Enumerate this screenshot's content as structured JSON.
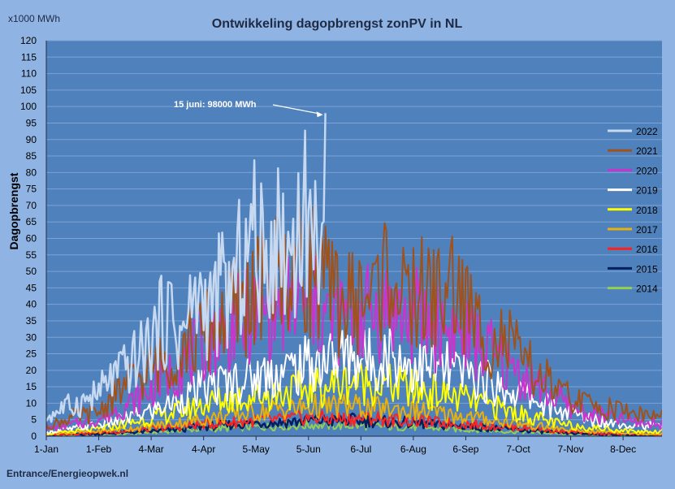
{
  "chart_data": {
    "type": "line",
    "title": "Ontwikkeling dagopbrengst zonPV in NL",
    "unit_label": "x1000 MWh",
    "ylabel": "Dagopbrengst",
    "source": "Entrance/Energieopwek.nl",
    "annotation": "15 juni: 98000 MWh",
    "annotation_point": {
      "day": 166,
      "value": 98
    },
    "ylim": [
      0,
      120
    ],
    "yticks": [
      0,
      5,
      10,
      15,
      20,
      25,
      30,
      35,
      40,
      45,
      50,
      55,
      60,
      65,
      70,
      75,
      80,
      85,
      90,
      95,
      100,
      105,
      110,
      115,
      120
    ],
    "xlim": [
      1,
      365
    ],
    "xticks": [
      {
        "label": "1-Jan",
        "day": 1
      },
      {
        "label": "1-Feb",
        "day": 32
      },
      {
        "label": "4-Mar",
        "day": 63
      },
      {
        "label": "4-Apr",
        "day": 94
      },
      {
        "label": "5-May",
        "day": 125
      },
      {
        "label": "5-Jun",
        "day": 156
      },
      {
        "label": "6-Jul",
        "day": 187
      },
      {
        "label": "6-Aug",
        "day": 218
      },
      {
        "label": "6-Sep",
        "day": 249
      },
      {
        "label": "7-Oct",
        "day": 280
      },
      {
        "label": "7-Nov",
        "day": 311
      },
      {
        "label": "8-Dec",
        "day": 342
      }
    ],
    "grid": true,
    "legend_position": "right",
    "colors": {
      "plot_bg": "#4f81bd",
      "page_bg": "#8fb4e3",
      "grid": "#7ea3d4"
    },
    "series": [
      {
        "name": "2022",
        "color": "#c6d9f0",
        "width": 2.5,
        "x": [
          1,
          10,
          20,
          31,
          40,
          50,
          60,
          70,
          75,
          80,
          90,
          100,
          105,
          110,
          115,
          120,
          125,
          130,
          135,
          140,
          145,
          150,
          155,
          160,
          163,
          166
        ],
        "y": [
          8,
          12,
          14,
          18,
          25,
          30,
          38,
          50,
          53,
          42,
          60,
          55,
          66,
          60,
          72,
          82,
          88,
          70,
          90,
          85,
          78,
          93,
          96,
          85,
          95,
          98
        ]
      },
      {
        "name": "2021",
        "color": "#a0521d",
        "width": 2,
        "x": [
          1,
          15,
          31,
          45,
          59,
          70,
          80,
          91,
          100,
          110,
          121,
          130,
          140,
          152,
          160,
          170,
          182,
          195,
          205,
          213,
          220,
          230,
          243,
          255,
          265,
          274,
          285,
          295,
          305,
          320,
          335,
          350,
          365
        ],
        "y": [
          4,
          8,
          10,
          20,
          28,
          32,
          38,
          42,
          48,
          55,
          60,
          65,
          70,
          78,
          72,
          60,
          58,
          62,
          75,
          55,
          62,
          60,
          65,
          48,
          42,
          40,
          30,
          25,
          18,
          14,
          12,
          10,
          8
        ]
      },
      {
        "name": "2020",
        "color": "#cc33cc",
        "width": 2,
        "x": [
          1,
          15,
          31,
          45,
          59,
          70,
          80,
          91,
          100,
          110,
          121,
          130,
          140,
          152,
          160,
          170,
          182,
          195,
          205,
          213,
          220,
          230,
          243,
          255,
          265,
          274,
          285,
          295,
          305,
          320,
          335,
          350,
          365
        ],
        "y": [
          3,
          5,
          7,
          12,
          18,
          25,
          30,
          38,
          44,
          48,
          52,
          55,
          57,
          58,
          55,
          50,
          52,
          54,
          56,
          50,
          52,
          48,
          45,
          40,
          35,
          30,
          25,
          20,
          15,
          10,
          8,
          6,
          5
        ]
      },
      {
        "name": "2019",
        "color": "#ffffff",
        "width": 2,
        "x": [
          1,
          15,
          31,
          45,
          59,
          70,
          80,
          91,
          100,
          110,
          121,
          130,
          140,
          152,
          160,
          170,
          182,
          195,
          205,
          213,
          220,
          230,
          243,
          255,
          265,
          274,
          285,
          295,
          305,
          320,
          335,
          350,
          365
        ],
        "y": [
          2,
          3,
          5,
          7,
          10,
          13,
          16,
          20,
          22,
          24,
          25,
          27,
          28,
          30,
          32,
          34,
          35,
          33,
          36,
          32,
          30,
          30,
          28,
          26,
          22,
          20,
          18,
          14,
          11,
          8,
          6,
          5,
          4
        ]
      },
      {
        "name": "2018",
        "color": "#ffff00",
        "width": 2,
        "x": [
          1,
          15,
          31,
          45,
          59,
          70,
          80,
          91,
          100,
          110,
          121,
          130,
          140,
          152,
          160,
          170,
          182,
          195,
          205,
          213,
          220,
          230,
          243,
          255,
          265,
          274,
          285,
          295,
          305,
          320,
          335,
          350,
          365
        ],
        "y": [
          1,
          2,
          3,
          5,
          7,
          9,
          11,
          13,
          15,
          16,
          17,
          18,
          19,
          20,
          21,
          22,
          24,
          23,
          22,
          21,
          20,
          19,
          17,
          15,
          13,
          11,
          9,
          7,
          5,
          4,
          3,
          2,
          2
        ]
      },
      {
        "name": "2017",
        "color": "#e8b00c",
        "width": 2,
        "x": [
          1,
          15,
          31,
          45,
          59,
          70,
          80,
          91,
          100,
          110,
          121,
          130,
          140,
          152,
          160,
          170,
          182,
          195,
          205,
          213,
          220,
          230,
          243,
          255,
          265,
          274,
          285,
          295,
          305,
          320,
          335,
          350,
          365
        ],
        "y": [
          1,
          1.5,
          2,
          3,
          4,
          5,
          6,
          7,
          8,
          9,
          10,
          11,
          12,
          12,
          13,
          13,
          13,
          12,
          12,
          11,
          11,
          10,
          9,
          8,
          7,
          6,
          5,
          4,
          3,
          2,
          2,
          1,
          1
        ]
      },
      {
        "name": "2016",
        "color": "#ff2020",
        "width": 2,
        "x": [
          1,
          15,
          31,
          45,
          59,
          70,
          80,
          91,
          100,
          110,
          121,
          130,
          140,
          152,
          160,
          170,
          182,
          195,
          205,
          213,
          220,
          230,
          243,
          255,
          265,
          274,
          285,
          295,
          305,
          320,
          335,
          350,
          365
        ],
        "y": [
          0.5,
          1,
          1.5,
          2,
          3,
          3.5,
          4,
          5,
          5.5,
          6,
          6.5,
          7,
          7,
          8,
          8,
          7.5,
          7.5,
          8,
          7,
          7,
          6.5,
          6,
          5.5,
          5,
          4.5,
          4,
          3.5,
          3,
          2,
          1.5,
          1,
          1,
          0.5
        ]
      },
      {
        "name": "2015",
        "color": "#002060",
        "width": 2.5,
        "x": [
          1,
          15,
          31,
          45,
          59,
          70,
          80,
          91,
          100,
          110,
          121,
          130,
          140,
          152,
          160,
          170,
          182,
          195,
          205,
          213,
          220,
          230,
          243,
          255,
          265,
          274,
          285,
          295,
          305,
          320,
          335,
          350,
          365
        ],
        "y": [
          0.5,
          0.8,
          1,
          1.5,
          2,
          2.5,
          3,
          4,
          4.5,
          5,
          5.5,
          6,
          6,
          6.5,
          7,
          6.5,
          7,
          6.5,
          6,
          6,
          5.5,
          5,
          4.5,
          4,
          3.5,
          3,
          2.5,
          2,
          1.5,
          1,
          0.8,
          0.5,
          0.5
        ]
      },
      {
        "name": "2014",
        "color": "#92d050",
        "width": 2,
        "x": [
          1,
          15,
          31,
          45,
          59,
          70,
          80,
          91,
          100,
          110,
          121,
          130,
          140,
          152,
          160,
          170,
          182,
          195,
          205,
          213,
          220,
          230,
          243,
          255,
          265,
          274,
          285,
          295,
          305,
          320,
          335,
          350,
          365
        ],
        "y": [
          0.3,
          0.5,
          0.8,
          1,
          1.5,
          2,
          2.5,
          3,
          3.2,
          3.5,
          4,
          4,
          4.5,
          4.5,
          5,
          4.5,
          4.5,
          4.5,
          4,
          4,
          3.8,
          3.5,
          3,
          2.8,
          2.5,
          2,
          1.8,
          1.5,
          1,
          0.8,
          0.5,
          0.4,
          0.3
        ]
      }
    ]
  }
}
